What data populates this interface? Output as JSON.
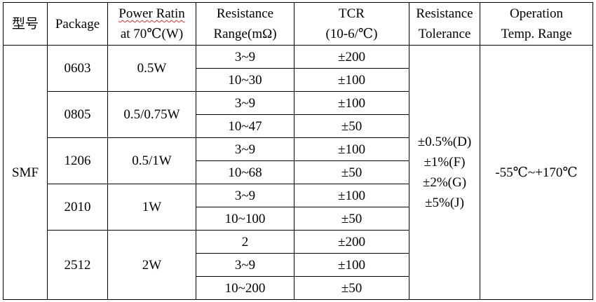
{
  "headers": {
    "model": "型号",
    "package": "Package",
    "power_line1": "Power Ratin",
    "power_line2": "at 70℃(W)",
    "resistance_line1": "Resistance",
    "resistance_line2": "Range(mΩ)",
    "tcr_line1": "TCR",
    "tcr_line2": "(10-6/℃)",
    "tolerance_line1": "Resistance",
    "tolerance_line2": "Tolerance",
    "temp_line1": "Operation",
    "temp_line2": "Temp. Range"
  },
  "model": "SMF",
  "groups": [
    {
      "package": "0603",
      "power": "0.5W",
      "rows": [
        {
          "range": "3~9",
          "tcr": "±200"
        },
        {
          "range": "10~30",
          "tcr": "±100"
        }
      ]
    },
    {
      "package": "0805",
      "power": "0.5/0.75W",
      "rows": [
        {
          "range": "3~9",
          "tcr": "±100"
        },
        {
          "range": "10~47",
          "tcr": "±50"
        }
      ]
    },
    {
      "package": "1206",
      "power": "0.5/1W",
      "rows": [
        {
          "range": "3~9",
          "tcr": "±100"
        },
        {
          "range": "10~68",
          "tcr": "±50"
        }
      ]
    },
    {
      "package": "2010",
      "power": "1W",
      "rows": [
        {
          "range": "3~9",
          "tcr": "±100"
        },
        {
          "range": "10~100",
          "tcr": "±50"
        }
      ]
    },
    {
      "package": "2512",
      "power": "2W",
      "rows": [
        {
          "range": "2",
          "tcr": "±200"
        },
        {
          "range": "3~9",
          "tcr": "±100"
        },
        {
          "range": "10~200",
          "tcr": "±50"
        }
      ]
    }
  ],
  "tolerance": [
    "±0.5%(D)",
    "±1%(F)",
    "±2%(G)",
    "±5%(J)"
  ],
  "temp_range": "-55℃~+170℃",
  "colors": {
    "border": "#000000",
    "spellcheck_underline": "#d32f2f",
    "text": "#000000",
    "background": "#ffffff"
  }
}
